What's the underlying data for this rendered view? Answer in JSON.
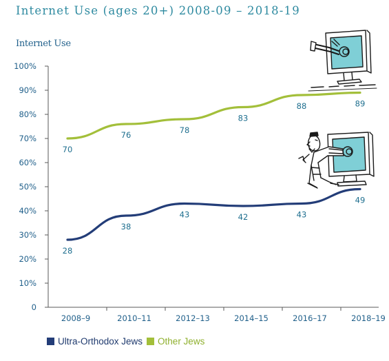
{
  "title": "Internet Use (ages 20+) 2008-09 – 2018-19",
  "chart_data": {
    "type": "line",
    "ylabel": "Internet Use",
    "y_ticks": [
      "0",
      "10%",
      "20%",
      "30%",
      "40%",
      "50%",
      "60%",
      "70%",
      "80%",
      "90%",
      "100%"
    ],
    "ylim": [
      0,
      100
    ],
    "categories": [
      "2008–9",
      "2010–11",
      "2012–13",
      "2014–15",
      "2016–17",
      "2018–19"
    ],
    "grid": false,
    "legend_position": "bottom-left",
    "series": [
      {
        "name": "Ultra-Orthodox Jews",
        "values": [
          28,
          38,
          43,
          42,
          43,
          49
        ],
        "color": "#233d78",
        "text_color": "#1f3a6e"
      },
      {
        "name": "Other Jews",
        "values": [
          70,
          76,
          78,
          83,
          88,
          89
        ],
        "color": "#a3bf3a",
        "text_color": "#8fb02e"
      }
    ]
  },
  "icons": [
    "computer-screen-legs-icon",
    "man-entering-computer-icon"
  ]
}
